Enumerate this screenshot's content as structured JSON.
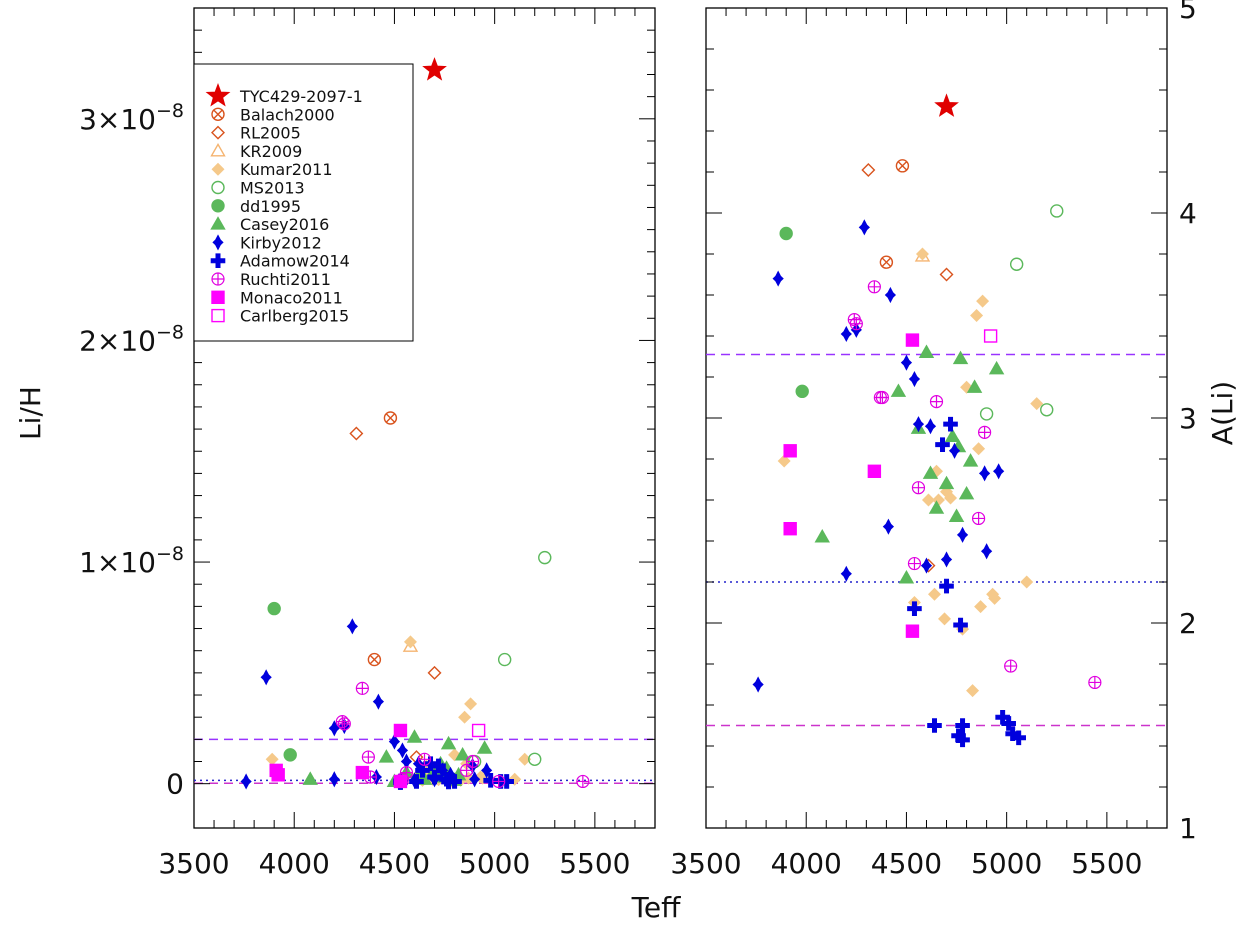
{
  "chart_data": {
    "type": "scatter",
    "x_label": "Teff",
    "left_panel": {
      "ylabel": "Li/H",
      "xlim": [
        3500,
        5800
      ],
      "ylim": [
        -2e-09,
        3.5e-08
      ],
      "ytick_labels": [
        {
          "v": 0,
          "base": "0",
          "exp": ""
        },
        {
          "v": 1e-08,
          "base": "1×10",
          "exp": "−8"
        },
        {
          "v": 2e-08,
          "base": "2×10",
          "exp": "−8"
        },
        {
          "v": 3e-08,
          "base": "3×10",
          "exp": "−8"
        }
      ],
      "xticks": [
        3500,
        4000,
        4500,
        5000,
        5500
      ],
      "hlines": [
        {
          "y": 2e-09,
          "style": "dashed",
          "color": "#9933ff"
        },
        {
          "y": 1.5e-10,
          "style": "dotted",
          "color": "#2222cc"
        },
        {
          "y": 2e-11,
          "style": "dashed",
          "color": "#cc33cc"
        }
      ]
    },
    "right_panel": {
      "ylabel": "A(Li)",
      "xlim": [
        3500,
        5800
      ],
      "ylim": [
        1,
        5
      ],
      "yticks": [
        1,
        2,
        3,
        4,
        5
      ],
      "xticks": [
        3500,
        4000,
        4500,
        5000,
        5500
      ],
      "hlines": [
        {
          "y": 3.31,
          "style": "dashed",
          "color": "#9933ff"
        },
        {
          "y": 2.2,
          "style": "dotted",
          "color": "#2222cc"
        },
        {
          "y": 1.5,
          "style": "dashed",
          "color": "#cc33cc"
        }
      ]
    },
    "series": [
      {
        "name": "TYC429-2097-1",
        "marker": "star",
        "color": "#e00000",
        "filled": true,
        "left": [
          [
            4700,
            3.22e-08
          ]
        ],
        "right": [
          [
            4700,
            4.52
          ]
        ]
      },
      {
        "name": "Balach2000",
        "marker": "circle-x",
        "color": "#d9541e",
        "filled": false,
        "left": [
          [
            4480,
            1.65e-08
          ],
          [
            4400,
            5.6e-09
          ]
        ],
        "right": [
          [
            4480,
            4.23
          ],
          [
            4400,
            3.76
          ]
        ]
      },
      {
        "name": "RL2005",
        "marker": "diamond",
        "color": "#d9541e",
        "filled": false,
        "left": [
          [
            4310,
            1.58e-08
          ],
          [
            4700,
            5e-09
          ],
          [
            4610,
            1.2e-09
          ]
        ],
        "right": [
          [
            4310,
            4.21
          ],
          [
            4700,
            3.7
          ],
          [
            4610,
            2.28
          ]
        ]
      },
      {
        "name": "KR2009",
        "marker": "triangle",
        "color": "#f5b470",
        "filled": false,
        "left": [
          [
            4580,
            6.2e-09
          ]
        ],
        "right": [
          [
            4580,
            3.79
          ]
        ]
      },
      {
        "name": "Kumar2011",
        "marker": "diamond",
        "color": "#f5c98a",
        "filled": true,
        "left": [
          [
            4580,
            6.4e-09
          ],
          [
            4880,
            3.6e-09
          ],
          [
            4850,
            3e-09
          ],
          [
            3890,
            1.1e-09
          ],
          [
            4650,
            5.5e-10
          ],
          [
            4700,
            4e-10
          ],
          [
            4660,
            8e-10
          ],
          [
            4800,
            1.3e-09
          ],
          [
            4860,
            9e-10
          ],
          [
            5150,
            1.1e-09
          ],
          [
            5100,
            2e-10
          ],
          [
            4640,
            1.5e-10
          ],
          [
            4930,
            3e-10
          ],
          [
            4870,
            2.5e-10
          ],
          [
            4690,
            2e-10
          ],
          [
            4780,
            1e-10
          ],
          [
            4830,
            1.5e-10
          ],
          [
            4940,
            2.5e-10
          ],
          [
            4540,
            1e-10
          ],
          [
            4720,
            1.8e-10
          ],
          [
            4610,
            3e-10
          ]
        ],
        "right": [
          [
            4580,
            3.8
          ],
          [
            4880,
            3.57
          ],
          [
            4850,
            3.5
          ],
          [
            3890,
            2.79
          ],
          [
            4650,
            2.74
          ],
          [
            4700,
            2.64
          ],
          [
            4660,
            2.6
          ],
          [
            4800,
            3.15
          ],
          [
            4860,
            2.85
          ],
          [
            5150,
            3.07
          ],
          [
            5100,
            2.2
          ],
          [
            4640,
            2.14
          ],
          [
            4930,
            2.14
          ],
          [
            4870,
            2.08
          ],
          [
            4690,
            2.02
          ],
          [
            4780,
            1.97
          ],
          [
            4830,
            1.67
          ],
          [
            4940,
            2.12
          ],
          [
            4540,
            2.1
          ],
          [
            4720,
            2.61
          ],
          [
            4610,
            2.6
          ]
        ]
      },
      {
        "name": "MS2013",
        "marker": "circle",
        "color": "#5bb85b",
        "filled": false,
        "left": [
          [
            5250,
            1.02e-08
          ],
          [
            5050,
            5.6e-09
          ],
          [
            4900,
            1e-09
          ],
          [
            5200,
            1.1e-09
          ]
        ],
        "right": [
          [
            5250,
            4.01
          ],
          [
            5050,
            3.75
          ],
          [
            4900,
            3.02
          ],
          [
            5200,
            3.04
          ]
        ]
      },
      {
        "name": "dd1995",
        "marker": "circle",
        "color": "#5bb85b",
        "filled": true,
        "left": [
          [
            3900,
            7.9e-09
          ],
          [
            3980,
            1.3e-09
          ]
        ],
        "right": [
          [
            3900,
            3.9
          ],
          [
            3980,
            3.13
          ]
        ]
      },
      {
        "name": "Casey2016",
        "marker": "triangle",
        "color": "#5bb85b",
        "filled": true,
        "left": [
          [
            4600,
            2.1e-09
          ],
          [
            4770,
            1.8e-09
          ],
          [
            4840,
            1.3e-09
          ],
          [
            4950,
            1.6e-09
          ],
          [
            4460,
            1.2e-09
          ],
          [
            4080,
            2e-10
          ],
          [
            4560,
            5e-10
          ],
          [
            4730,
            9e-10
          ],
          [
            4760,
            7e-10
          ],
          [
            4820,
            4e-10
          ],
          [
            4620,
            3e-10
          ],
          [
            4700,
            6e-10
          ],
          [
            4800,
            1.5e-10
          ],
          [
            4650,
            2e-10
          ],
          [
            4750,
            3e-10
          ],
          [
            4500,
            1e-10
          ]
        ],
        "right": [
          [
            4600,
            3.32
          ],
          [
            4770,
            3.29
          ],
          [
            4840,
            3.15
          ],
          [
            4950,
            3.24
          ],
          [
            4460,
            3.13
          ],
          [
            4080,
            2.42
          ],
          [
            4560,
            2.95
          ],
          [
            4730,
            2.91
          ],
          [
            4760,
            2.86
          ],
          [
            4820,
            2.79
          ],
          [
            4620,
            2.73
          ],
          [
            4700,
            2.68
          ],
          [
            4800,
            2.63
          ],
          [
            4650,
            2.56
          ],
          [
            4750,
            2.52
          ],
          [
            4500,
            2.22
          ]
        ]
      },
      {
        "name": "Kirby2012",
        "marker": "diamond-star",
        "color": "#0000dd",
        "filled": true,
        "left": [
          [
            4290,
            7.1e-09
          ],
          [
            3860,
            4.8e-09
          ],
          [
            4420,
            3.7e-09
          ],
          [
            4250,
            2.6e-09
          ],
          [
            4200,
            2.5e-09
          ],
          [
            4500,
            1.9e-09
          ],
          [
            4540,
            1.5e-09
          ],
          [
            4560,
            1e-09
          ],
          [
            4620,
            9e-10
          ],
          [
            4740,
            6e-10
          ],
          [
            4890,
            8e-10
          ],
          [
            4960,
            6e-10
          ],
          [
            4780,
            4e-10
          ],
          [
            4200,
            2e-10
          ],
          [
            3760,
            1e-10
          ],
          [
            4410,
            3e-10
          ],
          [
            4700,
            2e-10
          ],
          [
            4900,
            2e-10
          ],
          [
            4600,
            1.5e-10
          ]
        ],
        "right": [
          [
            4290,
            3.93
          ],
          [
            3860,
            3.68
          ],
          [
            4420,
            3.6
          ],
          [
            4250,
            3.43
          ],
          [
            4200,
            3.41
          ],
          [
            4500,
            3.27
          ],
          [
            4540,
            3.19
          ],
          [
            4560,
            2.97
          ],
          [
            4620,
            2.96
          ],
          [
            4740,
            2.84
          ],
          [
            4890,
            2.73
          ],
          [
            4960,
            2.74
          ],
          [
            4780,
            2.43
          ],
          [
            4200,
            2.24
          ],
          [
            3760,
            1.7
          ],
          [
            4410,
            2.47
          ],
          [
            4700,
            2.31
          ],
          [
            4900,
            2.35
          ],
          [
            4600,
            2.28
          ]
        ]
      },
      {
        "name": "Adamow2014",
        "marker": "plus",
        "color": "#0000dd",
        "filled": true,
        "left": [
          [
            4680,
            9e-10
          ],
          [
            4720,
            8e-10
          ],
          [
            4640,
            6e-10
          ],
          [
            4700,
            3e-10
          ],
          [
            4760,
            2e-10
          ],
          [
            4530,
            1.2e-10
          ],
          [
            4610,
            1e-10
          ],
          [
            4980,
            1.5e-10
          ],
          [
            5030,
            1e-10
          ],
          [
            5060,
            1e-10
          ],
          [
            4770,
            8e-11
          ],
          [
            4530,
            5e-11
          ],
          [
            4800,
            1e-10
          ]
        ],
        "right": [
          [
            4720,
            2.97
          ],
          [
            4680,
            2.87
          ],
          [
            4700,
            2.18
          ],
          [
            4540,
            2.07
          ],
          [
            4770,
            1.99
          ],
          [
            4980,
            1.54
          ],
          [
            5010,
            1.51
          ],
          [
            5030,
            1.46
          ],
          [
            5060,
            1.44
          ],
          [
            4780,
            1.5
          ],
          [
            4640,
            1.5
          ],
          [
            4760,
            1.45
          ],
          [
            4780,
            1.43
          ]
        ]
      },
      {
        "name": "Ruchti2011",
        "marker": "circle-plus",
        "color": "#e000e0",
        "filled": false,
        "left": [
          [
            4340,
            4.3e-09
          ],
          [
            4240,
            2.8e-09
          ],
          [
            4250,
            2.7e-09
          ],
          [
            4370,
            1.2e-09
          ],
          [
            4650,
            1.1e-09
          ],
          [
            4890,
            1e-09
          ],
          [
            4560,
            5e-10
          ],
          [
            4540,
            2e-10
          ],
          [
            5020,
            1e-10
          ],
          [
            5440,
            1e-10
          ],
          [
            4860,
            6e-10
          ],
          [
            4380,
            3e-10
          ]
        ],
        "right": [
          [
            4340,
            3.64
          ],
          [
            4240,
            3.48
          ],
          [
            4250,
            3.46
          ],
          [
            4370,
            3.1
          ],
          [
            4650,
            3.08
          ],
          [
            4890,
            2.93
          ],
          [
            4560,
            2.66
          ],
          [
            4540,
            2.29
          ],
          [
            5020,
            1.79
          ],
          [
            5440,
            1.71
          ],
          [
            4860,
            2.51
          ],
          [
            4380,
            3.1
          ]
        ]
      },
      {
        "name": "Monaco2011",
        "marker": "square",
        "color": "#ff00ff",
        "filled": true,
        "left": [
          [
            4530,
            2.4e-09
          ],
          [
            3910,
            6e-10
          ],
          [
            3920,
            4e-10
          ],
          [
            4340,
            5e-10
          ],
          [
            4530,
            1e-10
          ]
        ],
        "right": [
          [
            4530,
            3.38
          ],
          [
            3920,
            2.84
          ],
          [
            4340,
            2.74
          ],
          [
            3920,
            2.46
          ],
          [
            4530,
            1.96
          ]
        ]
      },
      {
        "name": "Carlberg2015",
        "marker": "square",
        "color": "#ff00ff",
        "filled": false,
        "left": [
          [
            4920,
            2.4e-09
          ]
        ],
        "right": [
          [
            4920,
            3.4
          ]
        ]
      }
    ]
  }
}
